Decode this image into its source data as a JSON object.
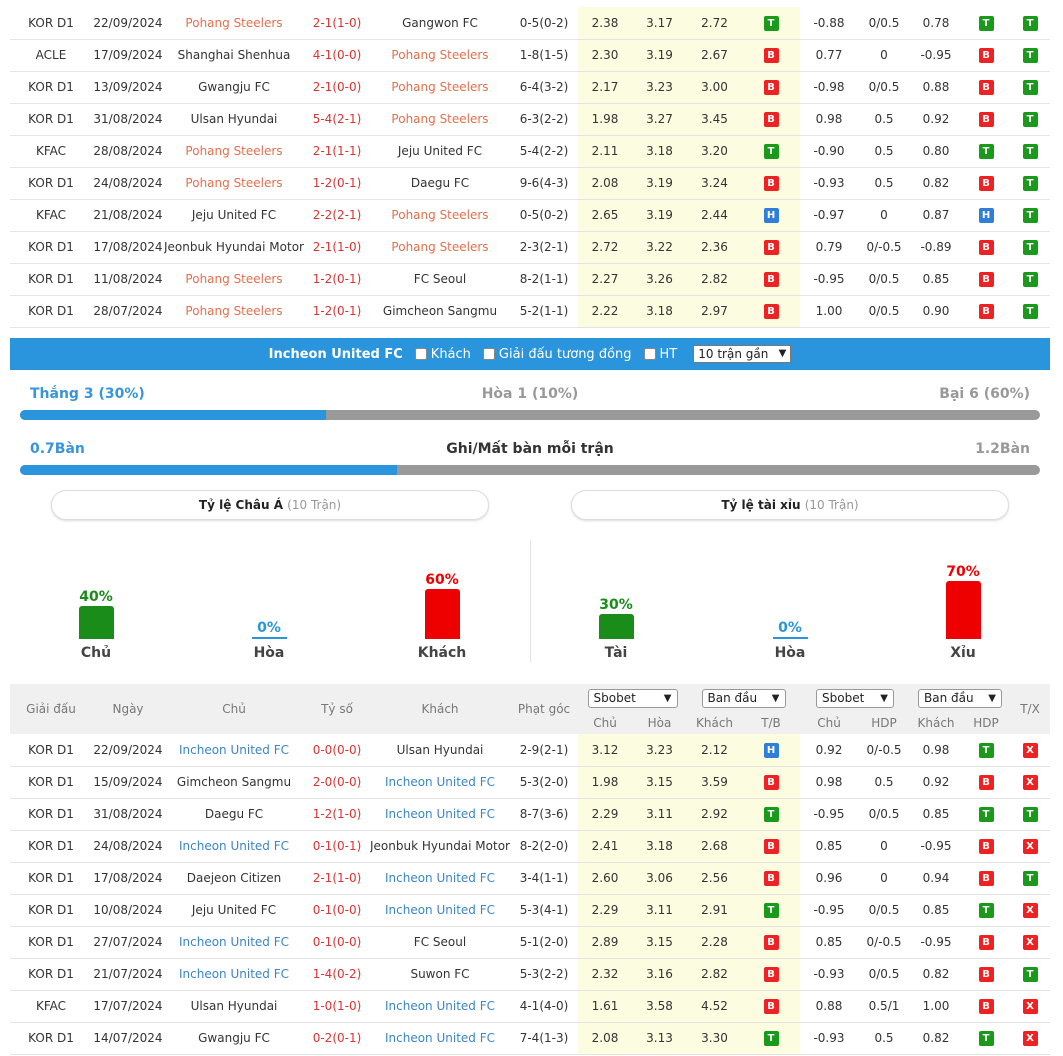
{
  "pohang_matches": [
    {
      "league": "KOR D1",
      "date": "22/09/2024",
      "home": "Pohang Steelers",
      "score": "2-1(1-0)",
      "away": "Gangwon FC",
      "corners": "0-5(0-2)",
      "o1": "2.38",
      "o2": "3.17",
      "o3": "2.72",
      "r1": "T",
      "ah1": "-0.88",
      "ah2": "0/0.5",
      "ah3": "0.78",
      "r2": "T",
      "r3": "T",
      "hl": "home"
    },
    {
      "league": "ACLE",
      "date": "17/09/2024",
      "home": "Shanghai Shenhua",
      "score": "4-1(0-0)",
      "away": "Pohang Steelers",
      "corners": "1-8(1-5)",
      "o1": "2.30",
      "o2": "3.19",
      "o3": "2.67",
      "r1": "B",
      "ah1": "0.77",
      "ah2": "0",
      "ah3": "-0.95",
      "r2": "B",
      "r3": "T",
      "hl": "away"
    },
    {
      "league": "KOR D1",
      "date": "13/09/2024",
      "home": "Gwangju FC",
      "score": "2-1(0-0)",
      "away": "Pohang Steelers",
      "corners": "6-4(3-2)",
      "o1": "2.17",
      "o2": "3.23",
      "o3": "3.00",
      "r1": "B",
      "ah1": "-0.98",
      "ah2": "0/0.5",
      "ah3": "0.88",
      "r2": "B",
      "r3": "T",
      "hl": "away"
    },
    {
      "league": "KOR D1",
      "date": "31/08/2024",
      "home": "Ulsan Hyundai",
      "score": "5-4(2-1)",
      "away": "Pohang Steelers",
      "corners": "6-3(2-2)",
      "o1": "1.98",
      "o2": "3.27",
      "o3": "3.45",
      "r1": "B",
      "ah1": "0.98",
      "ah2": "0.5",
      "ah3": "0.92",
      "r2": "B",
      "r3": "T",
      "hl": "away"
    },
    {
      "league": "KFAC",
      "date": "28/08/2024",
      "home": "Pohang Steelers",
      "score": "2-1(1-1)",
      "away": "Jeju United FC",
      "corners": "5-4(2-2)",
      "o1": "2.11",
      "o2": "3.18",
      "o3": "3.20",
      "r1": "T",
      "ah1": "-0.90",
      "ah2": "0.5",
      "ah3": "0.80",
      "r2": "T",
      "r3": "T",
      "hl": "home"
    },
    {
      "league": "KOR D1",
      "date": "24/08/2024",
      "home": "Pohang Steelers",
      "score": "1-2(0-1)",
      "away": "Daegu FC",
      "corners": "9-6(4-3)",
      "o1": "2.08",
      "o2": "3.19",
      "o3": "3.24",
      "r1": "B",
      "ah1": "-0.93",
      "ah2": "0.5",
      "ah3": "0.82",
      "r2": "B",
      "r3": "T",
      "hl": "home"
    },
    {
      "league": "KFAC",
      "date": "21/08/2024",
      "home": "Jeju United FC",
      "score": "2-2(2-1)",
      "away": "Pohang Steelers",
      "corners": "0-5(0-2)",
      "o1": "2.65",
      "o2": "3.19",
      "o3": "2.44",
      "r1": "H",
      "ah1": "-0.97",
      "ah2": "0",
      "ah3": "0.87",
      "r2": "H",
      "r3": "T",
      "hl": "away"
    },
    {
      "league": "KOR D1",
      "date": "17/08/2024",
      "home": "Jeonbuk Hyundai Motors",
      "score": "2-1(1-0)",
      "away": "Pohang Steelers",
      "corners": "2-3(2-1)",
      "o1": "2.72",
      "o2": "3.22",
      "o3": "2.36",
      "r1": "B",
      "ah1": "0.79",
      "ah2": "0/-0.5",
      "ah3": "-0.89",
      "r2": "B",
      "r3": "T",
      "hl": "away"
    },
    {
      "league": "KOR D1",
      "date": "11/08/2024",
      "home": "Pohang Steelers",
      "score": "1-2(0-1)",
      "away": "FC Seoul",
      "corners": "8-2(1-1)",
      "o1": "2.27",
      "o2": "3.26",
      "o3": "2.82",
      "r1": "B",
      "ah1": "-0.95",
      "ah2": "0/0.5",
      "ah3": "0.85",
      "r2": "B",
      "r3": "T",
      "hl": "home"
    },
    {
      "league": "KOR D1",
      "date": "28/07/2024",
      "home": "Pohang Steelers",
      "score": "1-2(0-1)",
      "away": "Gimcheon Sangmu",
      "corners": "5-2(1-1)",
      "o1": "2.22",
      "o2": "3.18",
      "o3": "2.97",
      "r1": "B",
      "ah1": "1.00",
      "ah2": "0/0.5",
      "ah3": "0.90",
      "r2": "B",
      "r3": "T",
      "hl": "home"
    }
  ],
  "team_bar": {
    "team_name": "Incheon United FC",
    "opt_away": "Khách",
    "opt_same_league": "Giải đấu tương đồng",
    "opt_ht": "HT",
    "select_value": "10 trận gần"
  },
  "summary": {
    "win": "Thắng 3 (30%)",
    "draw": "Hòa 1 (10%)",
    "loss": "Bại 6 (60%)",
    "win_fraction": 0.3,
    "goals_for": "0.7Bàn",
    "goals_title": "Ghi/Mất bàn mỗi trận",
    "goals_against": "1.2Bàn",
    "goals_fraction": 0.37
  },
  "asian_box": {
    "title": "Tỷ lệ Châu Á",
    "subtitle": "(10 Trận)",
    "items": [
      {
        "label": "Chủ",
        "pct": "40%",
        "value": 40,
        "color": "#1a8c1a"
      },
      {
        "label": "Hòa",
        "pct": "0%",
        "value": 0,
        "color": "#2a95dd"
      },
      {
        "label": "Khách",
        "pct": "60%",
        "value": 60,
        "color": "#e00"
      }
    ]
  },
  "ou_box": {
    "title": "Tỷ lệ tài xỉu",
    "subtitle": "(10 Trận)",
    "items": [
      {
        "label": "Tài",
        "pct": "30%",
        "value": 30,
        "color": "#1a8c1a"
      },
      {
        "label": "Hòa",
        "pct": "0%",
        "value": 0,
        "color": "#2a95dd"
      },
      {
        "label": "Xỉu",
        "pct": "70%",
        "value": 70,
        "color": "#e00"
      }
    ]
  },
  "incheon_header": {
    "league": "Giải đấu",
    "date": "Ngày",
    "home": "Chủ",
    "score": "Tỷ số",
    "away": "Khách",
    "corners": "Phạt góc",
    "sel1": "Sbobet",
    "sel2": "Ban đầu",
    "sel3": "Sbobet",
    "sel4": "Ban đầu",
    "c1": "Chủ",
    "c2": "Hòa",
    "c3": "Khách",
    "c4": "T/B",
    "c5": "Chủ",
    "c6": "HDP",
    "c7": "Khách",
    "c8": "HDP",
    "tx": "T/X"
  },
  "incheon_matches": [
    {
      "league": "KOR D1",
      "date": "22/09/2024",
      "home": "Incheon United FC",
      "score": "0-0(0-0)",
      "away": "Ulsan Hyundai",
      "corners": "2-9(2-1)",
      "o1": "3.12",
      "o2": "3.23",
      "o3": "2.12",
      "r1": "H",
      "ah1": "0.92",
      "ah2": "0/-0.5",
      "ah3": "0.98",
      "r2": "T",
      "r3": "X",
      "hl": "home"
    },
    {
      "league": "KOR D1",
      "date": "15/09/2024",
      "home": "Gimcheon Sangmu",
      "score": "2-0(0-0)",
      "away": "Incheon United FC",
      "corners": "5-3(2-0)",
      "o1": "1.98",
      "o2": "3.15",
      "o3": "3.59",
      "r1": "B",
      "ah1": "0.98",
      "ah2": "0.5",
      "ah3": "0.92",
      "r2": "B",
      "r3": "X",
      "hl": "away"
    },
    {
      "league": "KOR D1",
      "date": "31/08/2024",
      "home": "Daegu FC",
      "score": "1-2(1-0)",
      "away": "Incheon United FC",
      "corners": "8-7(3-6)",
      "o1": "2.29",
      "o2": "3.11",
      "o3": "2.92",
      "r1": "T",
      "ah1": "-0.95",
      "ah2": "0/0.5",
      "ah3": "0.85",
      "r2": "T",
      "r3": "T",
      "hl": "away"
    },
    {
      "league": "KOR D1",
      "date": "24/08/2024",
      "home": "Incheon United FC",
      "score": "0-1(0-1)",
      "away": "Jeonbuk Hyundai Motors",
      "corners": "8-2(2-0)",
      "o1": "2.41",
      "o2": "3.18",
      "o3": "2.68",
      "r1": "B",
      "ah1": "0.85",
      "ah2": "0",
      "ah3": "-0.95",
      "r2": "B",
      "r3": "X",
      "hl": "home"
    },
    {
      "league": "KOR D1",
      "date": "17/08/2024",
      "home": "Daejeon Citizen",
      "score": "2-1(1-0)",
      "away": "Incheon United FC",
      "corners": "3-4(1-1)",
      "o1": "2.60",
      "o2": "3.06",
      "o3": "2.56",
      "r1": "B",
      "ah1": "0.96",
      "ah2": "0",
      "ah3": "0.94",
      "r2": "B",
      "r3": "T",
      "hl": "away"
    },
    {
      "league": "KOR D1",
      "date": "10/08/2024",
      "home": "Jeju United FC",
      "score": "0-1(0-0)",
      "away": "Incheon United FC",
      "corners": "5-3(4-1)",
      "o1": "2.29",
      "o2": "3.11",
      "o3": "2.91",
      "r1": "T",
      "ah1": "-0.95",
      "ah2": "0/0.5",
      "ah3": "0.85",
      "r2": "T",
      "r3": "X",
      "hl": "away"
    },
    {
      "league": "KOR D1",
      "date": "27/07/2024",
      "home": "Incheon United FC",
      "score": "0-1(0-0)",
      "away": "FC Seoul",
      "corners": "5-1(2-0)",
      "o1": "2.89",
      "o2": "3.15",
      "o3": "2.28",
      "r1": "B",
      "ah1": "0.85",
      "ah2": "0/-0.5",
      "ah3": "-0.95",
      "r2": "B",
      "r3": "X",
      "hl": "home"
    },
    {
      "league": "KOR D1",
      "date": "21/07/2024",
      "home": "Incheon United FC",
      "score": "1-4(0-2)",
      "away": "Suwon FC",
      "corners": "5-3(2-2)",
      "o1": "2.32",
      "o2": "3.16",
      "o3": "2.82",
      "r1": "B",
      "ah1": "-0.93",
      "ah2": "0/0.5",
      "ah3": "0.82",
      "r2": "B",
      "r3": "T",
      "hl": "home"
    },
    {
      "league": "KFAC",
      "date": "17/07/2024",
      "home": "Ulsan Hyundai",
      "score": "1-0(1-0)",
      "away": "Incheon United FC",
      "corners": "4-1(4-0)",
      "o1": "1.61",
      "o2": "3.58",
      "o3": "4.52",
      "r1": "B",
      "ah1": "0.88",
      "ah2": "0.5/1",
      "ah3": "1.00",
      "r2": "B",
      "r3": "X",
      "hl": "away"
    },
    {
      "league": "KOR D1",
      "date": "14/07/2024",
      "home": "Gwangju FC",
      "score": "0-2(0-1)",
      "away": "Incheon United FC",
      "corners": "7-4(1-3)",
      "o1": "2.08",
      "o2": "3.13",
      "o3": "3.30",
      "r1": "T",
      "ah1": "-0.93",
      "ah2": "0.5",
      "ah3": "0.82",
      "r2": "T",
      "r3": "X",
      "hl": "away"
    }
  ]
}
